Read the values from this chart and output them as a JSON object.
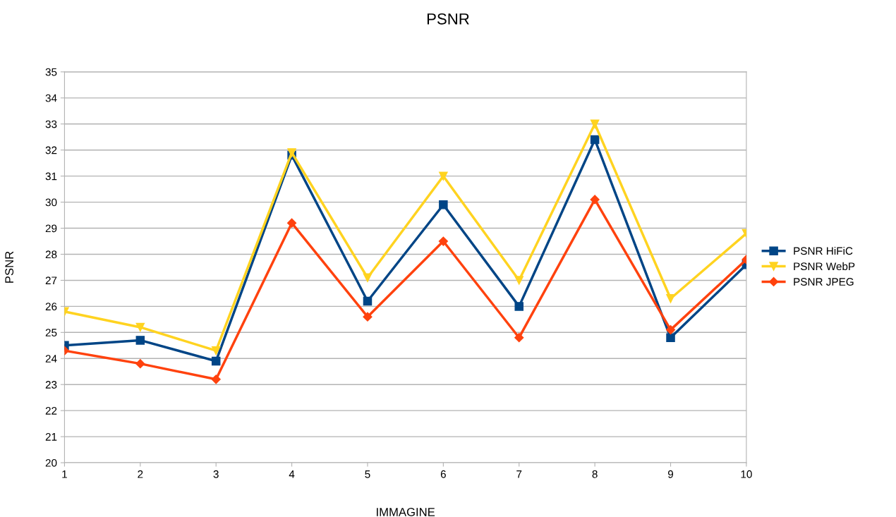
{
  "chart_data": {
    "type": "line",
    "title": "PSNR",
    "xlabel": "IMMAGINE",
    "ylabel": "PSNR",
    "x": [
      1,
      2,
      3,
      4,
      5,
      6,
      7,
      8,
      9,
      10
    ],
    "series": [
      {
        "name": "PSNR HiFiC",
        "color": "#004586",
        "marker": "square",
        "values": [
          24.5,
          24.7,
          23.9,
          31.8,
          26.2,
          29.9,
          26.0,
          32.4,
          24.8,
          27.6
        ]
      },
      {
        "name": "PSNR WebP",
        "color": "#ffd320",
        "marker": "triangle",
        "values": [
          25.8,
          25.2,
          24.3,
          31.9,
          27.1,
          31.0,
          27.0,
          33.0,
          26.3,
          28.8
        ]
      },
      {
        "name": "PSNR JPEG",
        "color": "#ff420e",
        "marker": "diamond",
        "values": [
          24.3,
          23.8,
          23.2,
          29.2,
          25.6,
          28.5,
          24.8,
          30.1,
          25.1,
          27.8
        ]
      }
    ],
    "xlim": [
      1,
      10
    ],
    "xticks": [
      1,
      2,
      3,
      4,
      5,
      6,
      7,
      8,
      9,
      10
    ],
    "ylim": [
      20,
      35
    ],
    "yticks": [
      20,
      21,
      22,
      23,
      24,
      25,
      26,
      27,
      28,
      29,
      30,
      31,
      32,
      33,
      34,
      35
    ],
    "grid": "y",
    "legend": "right",
    "line_style": "solid"
  }
}
